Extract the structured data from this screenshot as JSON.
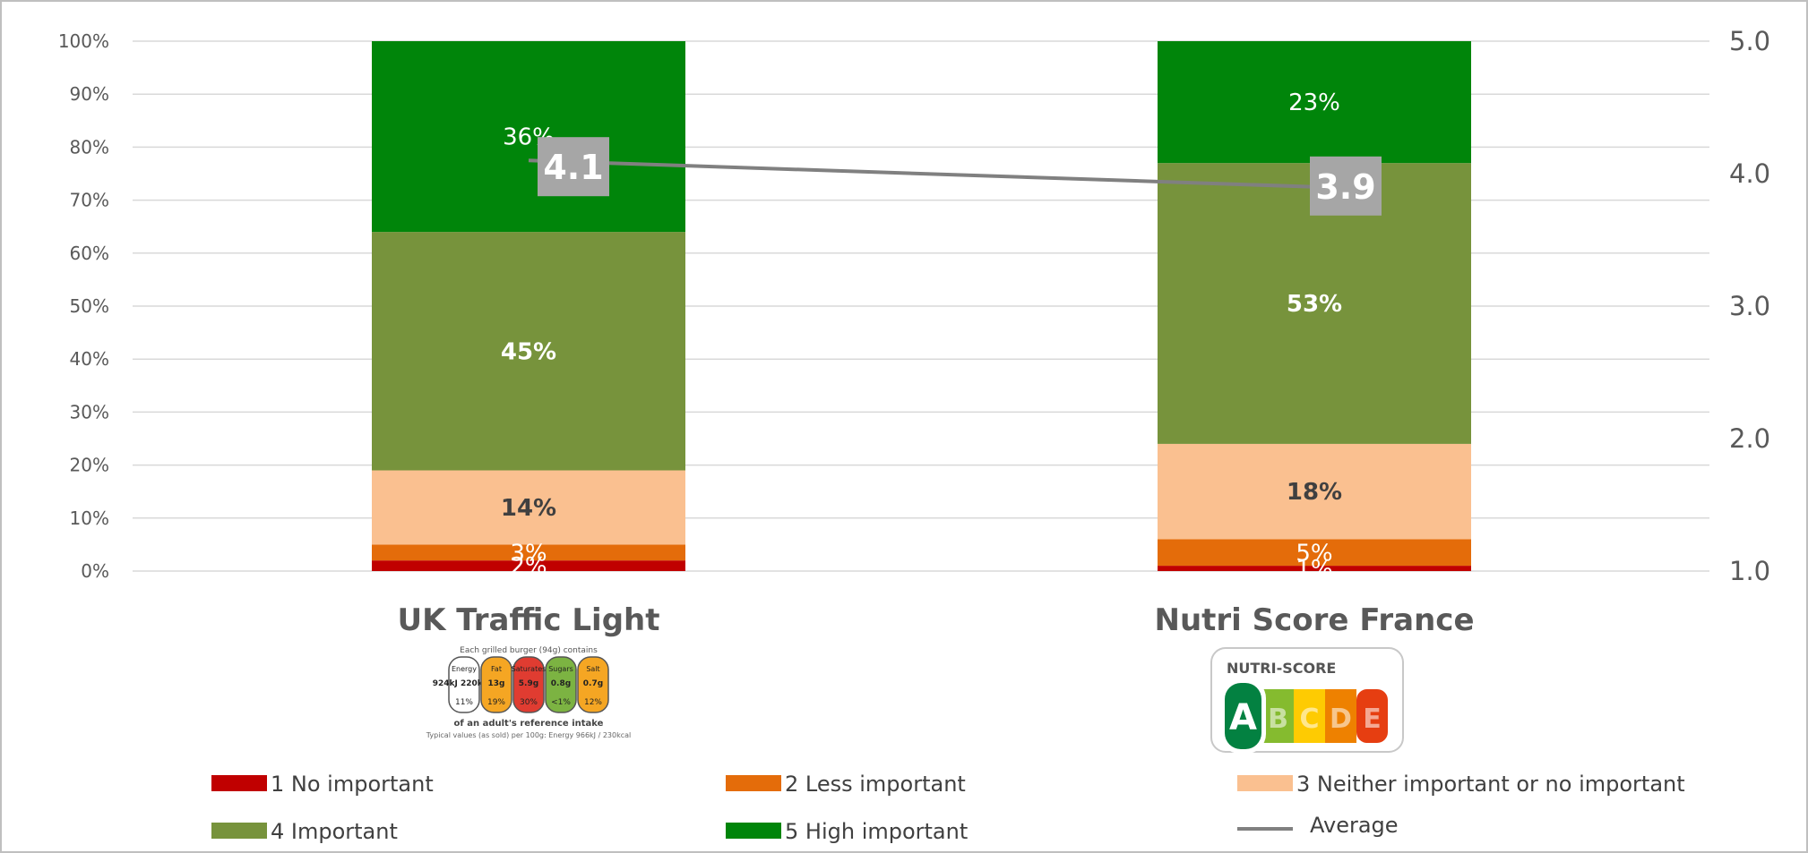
{
  "chart_data": {
    "type": "bar",
    "stacked": true,
    "categories": [
      "UK Traffic Light",
      "Nutri Score France"
    ],
    "series": [
      {
        "name": "1  No important",
        "color": "#c00000",
        "values": [
          2,
          1
        ],
        "labels": [
          "2%",
          "1%"
        ]
      },
      {
        "name": "2  Less important",
        "color": "#e46c0a",
        "values": [
          3,
          5
        ],
        "labels": [
          "3%",
          "5%"
        ]
      },
      {
        "name": "3  Neither important or no important",
        "color": "#fac090",
        "values": [
          14,
          18
        ],
        "labels": [
          "14%",
          "18%"
        ]
      },
      {
        "name": "4  Important",
        "color": "#77933c",
        "values": [
          45,
          53
        ],
        "labels": [
          "45%",
          "53%"
        ]
      },
      {
        "name": "5  High important",
        "color": "#00850a",
        "values": [
          36,
          23
        ],
        "labels": [
          "36%",
          "23%"
        ]
      }
    ],
    "average": {
      "name": "Average",
      "color": "#808080",
      "values": [
        4.1,
        3.9
      ],
      "labels": [
        "4.1",
        "3.9"
      ]
    },
    "y_left": {
      "min": 0,
      "max": 100,
      "ticks": [
        "0%",
        "10%",
        "20%",
        "30%",
        "40%",
        "50%",
        "60%",
        "70%",
        "80%",
        "90%",
        "100%"
      ]
    },
    "y_right": {
      "min": 1.0,
      "max": 5.0,
      "ticks": [
        "1.0",
        "2.0",
        "3.0",
        "4.0",
        "5.0"
      ]
    },
    "grid": true,
    "legend_position": "bottom"
  },
  "logos": {
    "traffic_light": {
      "header": "Each grilled burger (94g) contains",
      "items": [
        {
          "name": "Energy",
          "value": "924kJ 220kcal",
          "pct": "11%",
          "color": "#ffffff"
        },
        {
          "name": "Fat",
          "value": "13g",
          "pct": "19%",
          "color": "#f5a623"
        },
        {
          "name": "Saturates",
          "value": "5.9g",
          "pct": "30%",
          "color": "#e03c31"
        },
        {
          "name": "Sugars",
          "value": "0.8g",
          "pct": "<1%",
          "color": "#7cb342"
        },
        {
          "name": "Salt",
          "value": "0.7g",
          "pct": "12%",
          "color": "#f5a623"
        }
      ],
      "footer1": "of an adult's reference intake",
      "footer2": "Typical values (as sold) per 100g: Energy 966kJ / 230kcal"
    },
    "nutri_score": {
      "title": "NUTRI-SCORE",
      "grades": [
        {
          "letter": "A",
          "color": "#038141"
        },
        {
          "letter": "B",
          "color": "#85bb2f"
        },
        {
          "letter": "C",
          "color": "#fecb02"
        },
        {
          "letter": "D",
          "color": "#ee8100"
        },
        {
          "letter": "E",
          "color": "#e63e11"
        }
      ]
    }
  }
}
